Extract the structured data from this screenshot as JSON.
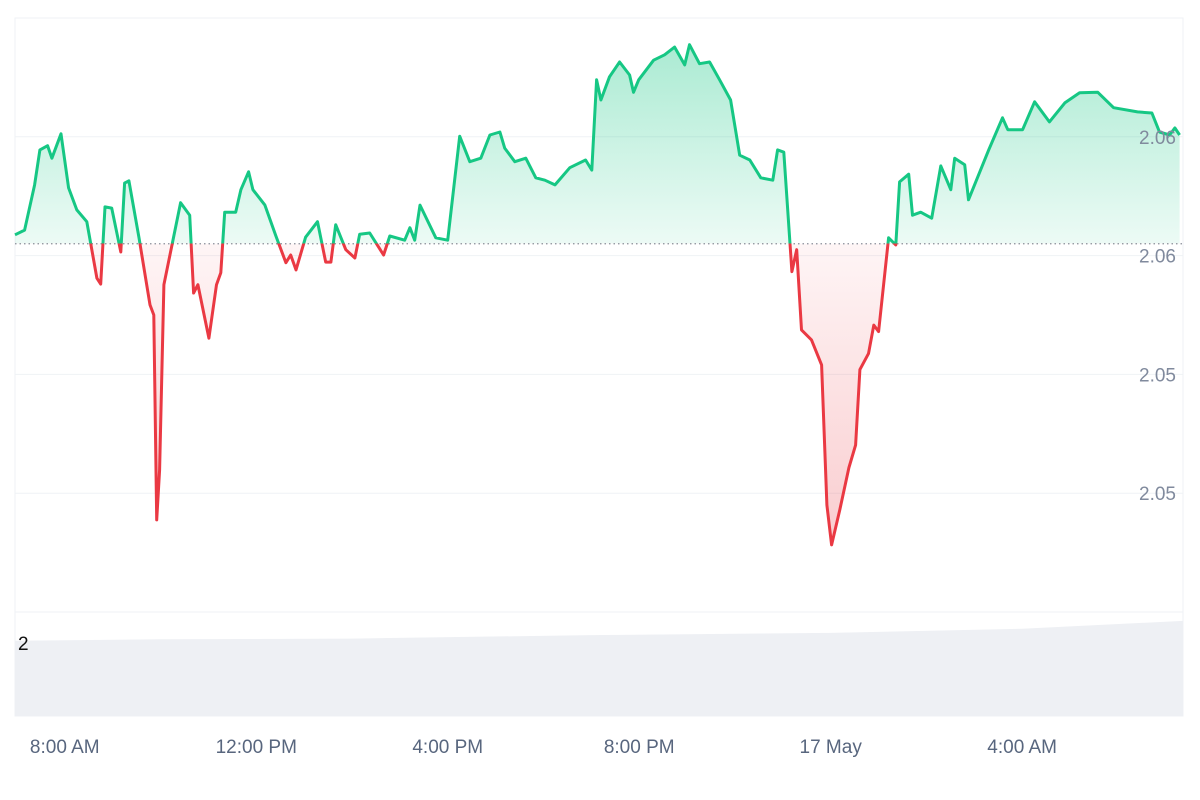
{
  "chart_data": {
    "type": "line",
    "x": [
      6.96,
      7.16,
      7.37,
      7.48,
      7.64,
      7.73,
      7.92,
      8.08,
      8.25,
      8.46,
      8.67,
      8.75,
      8.84,
      8.98,
      9.17,
      9.25,
      9.34,
      9.55,
      9.78,
      9.86,
      9.92,
      9.98,
      10.07,
      10.24,
      10.42,
      10.61,
      10.69,
      10.78,
      11.01,
      11.17,
      11.26,
      11.34,
      11.57,
      11.68,
      11.84,
      11.93,
      12.18,
      12.41,
      12.62,
      12.72,
      12.83,
      13.03,
      13.28,
      13.45,
      13.56,
      13.66,
      13.87,
      14.06,
      14.16,
      14.37,
      14.66,
      14.79,
      15.1,
      15.21,
      15.31,
      15.42,
      15.75,
      16.0,
      16.15,
      16.25,
      16.46,
      16.69,
      16.88,
      17.09,
      17.19,
      17.4,
      17.63,
      17.84,
      18.03,
      18.24,
      18.55,
      18.88,
      19.01,
      19.11,
      19.2,
      19.38,
      19.59,
      19.8,
      19.88,
      19.99,
      20.3,
      20.53,
      20.74,
      20.95,
      21.05,
      21.26,
      21.47,
      21.68,
      21.91,
      22.1,
      22.31,
      22.54,
      22.79,
      22.89,
      23.02,
      23.19,
      23.29,
      23.39,
      23.6,
      23.81,
      23.92,
      24.02,
      24.19,
      24.38,
      24.52,
      24.61,
      24.79,
      24.9,
      25.0,
      25.21,
      25.36,
      25.44,
      25.63,
      25.71,
      25.88,
      26.11,
      26.3,
      26.51,
      26.59,
      26.8,
      26.88,
      27.3,
      27.59,
      27.7,
      28.01,
      28.26,
      28.57,
      28.89,
      29.2,
      29.58,
      29.91,
      30.41,
      30.71,
      30.87,
      31.08,
      31.19,
      31.29
    ],
    "values": [
      2.05635,
      2.05643,
      2.05719,
      2.05778,
      2.05785,
      2.05764,
      2.05805,
      2.05714,
      2.05677,
      2.05657,
      2.05562,
      2.05552,
      2.05682,
      2.0568,
      2.05606,
      2.05722,
      2.05726,
      2.0563,
      2.05517,
      2.055,
      2.05155,
      2.05239,
      2.05551,
      2.05618,
      2.05689,
      2.05668,
      2.05537,
      2.05551,
      2.05461,
      2.05551,
      2.05571,
      2.05673,
      2.05673,
      2.05711,
      2.05741,
      2.05711,
      2.05685,
      2.05633,
      2.05588,
      2.05601,
      2.05576,
      2.05631,
      2.05657,
      2.05589,
      2.05589,
      2.05652,
      2.0561,
      2.05596,
      2.05636,
      2.05638,
      2.05601,
      2.05633,
      2.05626,
      2.05647,
      2.05626,
      2.05685,
      2.0563,
      2.05626,
      2.05731,
      2.05801,
      2.05758,
      2.05764,
      2.05803,
      2.05808,
      2.05781,
      2.05758,
      2.05764,
      2.05731,
      2.05727,
      2.05719,
      2.05748,
      2.05761,
      2.05744,
      2.05896,
      2.05862,
      2.05901,
      2.05926,
      2.05904,
      2.05875,
      2.05896,
      2.05929,
      2.05938,
      2.05951,
      2.05921,
      2.05955,
      2.05923,
      2.05926,
      2.05896,
      2.05862,
      2.05769,
      2.05761,
      2.05731,
      2.05727,
      2.05778,
      2.05774,
      2.05573,
      2.0561,
      2.05475,
      2.05458,
      2.05416,
      2.0518,
      2.05113,
      2.05172,
      2.05243,
      2.05281,
      2.05408,
      2.05435,
      2.05483,
      2.05472,
      2.0563,
      2.05618,
      2.05724,
      2.05737,
      2.05668,
      2.05673,
      2.05663,
      2.05751,
      2.05711,
      2.05764,
      2.05753,
      2.05694,
      2.05778,
      2.05832,
      2.05812,
      2.05812,
      2.05859,
      2.05825,
      2.05857,
      2.05874,
      2.05875,
      2.05849,
      2.05842,
      2.0584,
      2.05808,
      2.05803,
      2.05815,
      2.05803
    ],
    "xlim": [
      6.96,
      31.36
    ],
    "ylim": [
      2.05,
      2.06
    ],
    "xticks": [
      {
        "value": 8,
        "label": "8:00 AM"
      },
      {
        "value": 12,
        "label": "12:00 PM"
      },
      {
        "value": 16,
        "label": "4:00 PM"
      },
      {
        "value": 20,
        "label": "8:00 PM"
      },
      {
        "value": 24,
        "label": "17 May"
      },
      {
        "value": 28,
        "label": "4:00 AM"
      }
    ],
    "yticks": [
      {
        "value": 2.058,
        "label": "2.06"
      },
      {
        "value": 2.056,
        "label": "2.06"
      },
      {
        "value": 2.054,
        "label": "2.05"
      },
      {
        "value": 2.052,
        "label": "2.05"
      }
    ],
    "baseline": 2.0562,
    "up_color": "#16c784",
    "down_color": "#ea3943",
    "grid": true,
    "volume": {
      "x": [
        6.96,
        10,
        14,
        19,
        24,
        28,
        31.36
      ],
      "values": [
        2.12,
        2.16,
        2.18,
        2.28,
        2.34,
        2.46,
        2.68
      ],
      "ylim": [
        0,
        2.93
      ],
      "yticks": [
        2
      ],
      "color": "#eef0f4"
    }
  }
}
